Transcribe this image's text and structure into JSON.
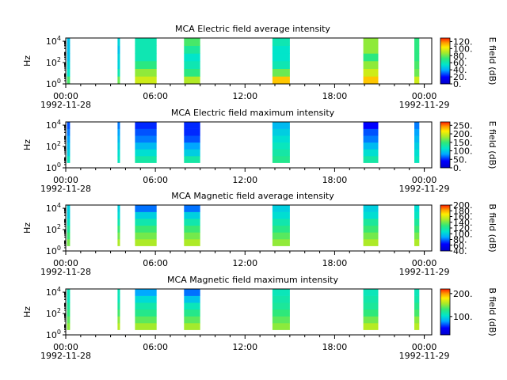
{
  "chart_data": {
    "type": "heatmap",
    "x_range": [
      "1992-11-28 00:00",
      "1992-11-29 00:30"
    ],
    "x_ticks": [
      {
        "time": "00:00",
        "date": "1992-11-28"
      },
      {
        "time": "06:00",
        "date": ""
      },
      {
        "time": "12:00",
        "date": ""
      },
      {
        "time": "18:00",
        "date": ""
      },
      {
        "time": "00:00",
        "date": "1992-11-29"
      }
    ],
    "x_minor_tick_hours": [
      1,
      2,
      3,
      4,
      5,
      7,
      8,
      9,
      10,
      11,
      13,
      14,
      15,
      16,
      17,
      19,
      20,
      21,
      22,
      23,
      24
    ],
    "y_scale": "log",
    "segments": [
      {
        "start": "00:05",
        "end": "00:17"
      },
      {
        "start": "03:28",
        "end": "03:38"
      },
      {
        "start": "04:38",
        "end": "06:05"
      },
      {
        "start": "07:55",
        "end": "09:00"
      },
      {
        "start": "13:50",
        "end": "15:00"
      },
      {
        "start": "19:55",
        "end": "20:55"
      },
      {
        "start": "23:20",
        "end": "23:40"
      }
    ],
    "panels": [
      {
        "title": "MCA  Electric field average intensity",
        "ylabel": "Hz",
        "ylim": [
          1,
          20000
        ],
        "y_ticks": [
          {
            "base": "10",
            "exp": "0"
          },
          {
            "base": "10",
            "exp": "2"
          },
          {
            "base": "10",
            "exp": "4"
          }
        ],
        "colorbar_label": "E field (dB)",
        "colorbar_range": [
          0,
          130
        ],
        "colorbar_ticks": [
          "0.",
          "20.",
          "40.",
          "60.",
          "80.",
          "100.",
          "120."
        ],
        "freq_lower_hz": 1,
        "freq_upper_hz": 20000,
        "segment_levels_db": [
          [
            75,
            55,
            50,
            45,
            45,
            45
          ],
          [
            80,
            60,
            50,
            50,
            45,
            50
          ],
          [
            95,
            85,
            70,
            60,
            60,
            60
          ],
          [
            90,
            70,
            60,
            55,
            65,
            75
          ],
          [
            110,
            80,
            60,
            55,
            55,
            60
          ],
          [
            110,
            95,
            85,
            70,
            85,
            85
          ],
          [
            95,
            80,
            75,
            70,
            70,
            70
          ]
        ]
      },
      {
        "title": "MCA  Electric field maximum intensity",
        "ylabel": "Hz",
        "ylim": [
          1,
          20000
        ],
        "y_ticks": [
          {
            "base": "10",
            "exp": "0"
          },
          {
            "base": "10",
            "exp": "2"
          },
          {
            "base": "10",
            "exp": "4"
          }
        ],
        "colorbar_label": "E field (dB)",
        "colorbar_range": [
          0,
          270
        ],
        "colorbar_ticks": [
          "0.",
          "50.",
          "100.",
          "150.",
          "200.",
          "250."
        ],
        "freq_lower_hz": 3,
        "freq_upper_hz": 20000,
        "segment_levels_db": [
          [
            120,
            100,
            90,
            80,
            70,
            60
          ],
          [
            120,
            110,
            100,
            90,
            80,
            70
          ],
          [
            130,
            110,
            90,
            70,
            60,
            50
          ],
          [
            130,
            100,
            80,
            60,
            50,
            50
          ],
          [
            140,
            130,
            120,
            110,
            100,
            90
          ],
          [
            130,
            110,
            90,
            70,
            60,
            40
          ],
          [
            120,
            110,
            100,
            90,
            80,
            70
          ]
        ]
      },
      {
        "title": "MCA  Magnetic field average intensity",
        "ylabel": "Hz",
        "ylim": [
          1,
          20000
        ],
        "y_ticks": [
          {
            "base": "10",
            "exp": "0"
          },
          {
            "base": "10",
            "exp": "2"
          },
          {
            "base": "10",
            "exp": "4"
          }
        ],
        "colorbar_label": "B field (dB)",
        "colorbar_range": [
          40,
          200
        ],
        "colorbar_ticks": [
          "40.",
          "60.",
          "80.",
          "100.",
          "120.",
          "140.",
          "160.",
          "180.",
          "200."
        ],
        "freq_lower_hz": 3,
        "freq_upper_hz": 20000,
        "segment_levels_db": [
          [
            140,
            130,
            120,
            110,
            100,
            100
          ],
          [
            150,
            140,
            130,
            115,
            105,
            100
          ],
          [
            150,
            140,
            130,
            115,
            100,
            80
          ],
          [
            150,
            140,
            130,
            115,
            100,
            80
          ],
          [
            145,
            135,
            125,
            115,
            105,
            100
          ],
          [
            150,
            140,
            130,
            120,
            105,
            100
          ],
          [
            150,
            140,
            130,
            120,
            110,
            105
          ]
        ]
      },
      {
        "title": "MCA  Magnetic field maximum intensity",
        "ylabel": "Hz",
        "ylim": [
          1,
          20000
        ],
        "y_ticks": [
          {
            "base": "10",
            "exp": "0"
          },
          {
            "base": "10",
            "exp": "2"
          },
          {
            "base": "10",
            "exp": "4"
          }
        ],
        "colorbar_label": "B field (dB)",
        "colorbar_range": [
          20,
          220
        ],
        "colorbar_ticks": [
          "100.",
          "200."
        ],
        "freq_lower_hz": 3,
        "freq_upper_hz": 20000,
        "segment_levels_db": [
          [
            150,
            140,
            130,
            120,
            110,
            110
          ],
          [
            160,
            150,
            135,
            120,
            110,
            110
          ],
          [
            155,
            140,
            125,
            115,
            100,
            80
          ],
          [
            155,
            140,
            125,
            110,
            90,
            70
          ],
          [
            150,
            140,
            130,
            120,
            115,
            110
          ],
          [
            160,
            145,
            130,
            120,
            115,
            110
          ],
          [
            160,
            150,
            135,
            125,
            115,
            110
          ]
        ]
      }
    ]
  }
}
